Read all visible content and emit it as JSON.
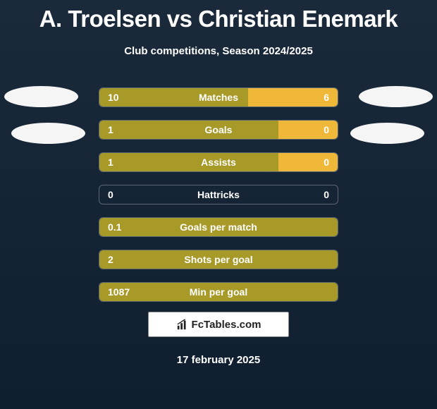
{
  "title": "A. Troelsen vs Christian Enemark",
  "subtitle": "Club competitions, Season 2024/2025",
  "date": "17 february 2025",
  "badge_text": "FcTables.com",
  "colors": {
    "left_fill": "#a89a28",
    "right_fill": "#f0b838",
    "full_fill": "#a89a28",
    "row_border": "rgba(255,255,255,0.3)"
  },
  "rows": [
    {
      "label": "Matches",
      "left": "10",
      "right": "6",
      "left_pct": 62.5,
      "right_pct": 37.5,
      "mode": "split"
    },
    {
      "label": "Goals",
      "left": "1",
      "right": "0",
      "left_pct": 75,
      "right_pct": 25,
      "mode": "split"
    },
    {
      "label": "Assists",
      "left": "1",
      "right": "0",
      "left_pct": 75,
      "right_pct": 25,
      "mode": "split"
    },
    {
      "label": "Hattricks",
      "left": "0",
      "right": "0",
      "left_pct": 0,
      "right_pct": 0,
      "mode": "empty"
    },
    {
      "label": "Goals per match",
      "left": "0.1",
      "right": "",
      "left_pct": 100,
      "right_pct": 0,
      "mode": "full"
    },
    {
      "label": "Shots per goal",
      "left": "2",
      "right": "",
      "left_pct": 100,
      "right_pct": 0,
      "mode": "full"
    },
    {
      "label": "Min per goal",
      "left": "1087",
      "right": "",
      "left_pct": 100,
      "right_pct": 0,
      "mode": "full"
    }
  ]
}
